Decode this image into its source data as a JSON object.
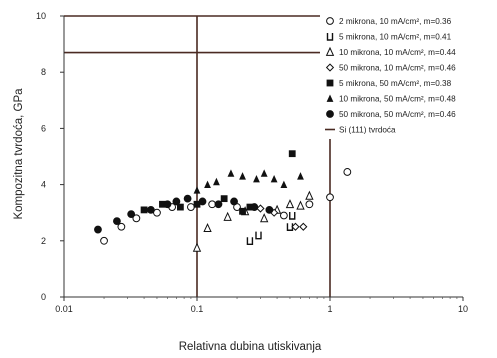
{
  "chart_data": {
    "type": "scatter",
    "x_scale": "log",
    "xlim": [
      0.01,
      10
    ],
    "ylim": [
      0,
      10
    ],
    "x_ticks": [
      {
        "value": 0.01,
        "label": "0.01"
      },
      {
        "value": 0.1,
        "label": "0.1"
      },
      {
        "value": 1,
        "label": "1"
      },
      {
        "value": 10,
        "label": "10"
      }
    ],
    "y_ticks": [
      {
        "value": 0,
        "label": "0"
      },
      {
        "value": 2,
        "label": "2"
      },
      {
        "value": 4,
        "label": "4"
      },
      {
        "value": 6,
        "label": "6"
      },
      {
        "value": 8,
        "label": "8"
      },
      {
        "value": 10,
        "label": "10"
      }
    ],
    "xlabel": "Relativna dubina utiskivanja",
    "ylabel": "Kompozitna tvrdoća, GPa",
    "legend_position": "top-right",
    "reference_lines": [
      {
        "type": "horizontal",
        "y": 10
      },
      {
        "type": "horizontal",
        "y": 8.7
      },
      {
        "type": "vertical",
        "x": 0.1
      },
      {
        "type": "vertical",
        "x": 1
      }
    ],
    "series": [
      {
        "name": "2 mikrona, 10 mA/cm², m=0.36",
        "marker": "circle-open",
        "points": [
          [
            0.02,
            2.0
          ],
          [
            0.027,
            2.5
          ],
          [
            0.035,
            2.8
          ],
          [
            0.05,
            3.0
          ],
          [
            0.065,
            3.2
          ],
          [
            0.09,
            3.2
          ],
          [
            0.13,
            3.3
          ],
          [
            0.2,
            3.2
          ],
          [
            0.45,
            2.9
          ],
          [
            0.7,
            3.3
          ],
          [
            1.0,
            3.55
          ],
          [
            1.35,
            4.45
          ]
        ]
      },
      {
        "name": "5 mikrona, 10 mA/cm², m=0.41",
        "marker": "bracket",
        "points": [
          [
            0.25,
            2.0
          ],
          [
            0.29,
            2.2
          ],
          [
            0.5,
            2.5
          ],
          [
            0.52,
            2.9
          ]
        ]
      },
      {
        "name": "10 mikrona, 10 mA/cm², m=0.44",
        "marker": "triangle-open",
        "points": [
          [
            0.1,
            1.75
          ],
          [
            0.12,
            2.45
          ],
          [
            0.17,
            2.85
          ],
          [
            0.23,
            3.05
          ],
          [
            0.32,
            2.8
          ],
          [
            0.4,
            3.1
          ],
          [
            0.5,
            3.3
          ],
          [
            0.6,
            3.25
          ],
          [
            0.7,
            3.6
          ]
        ]
      },
      {
        "name": "50 mikrona, 10 mA/cm², m=0.46",
        "marker": "diamond-open",
        "points": [
          [
            0.3,
            3.15
          ],
          [
            0.38,
            3.0
          ],
          [
            0.55,
            2.5
          ],
          [
            0.63,
            2.5
          ]
        ]
      },
      {
        "name": "5 mikrona, 50 mA/cm², m=0.38",
        "marker": "square",
        "points": [
          [
            0.04,
            3.1
          ],
          [
            0.055,
            3.3
          ],
          [
            0.075,
            3.2
          ],
          [
            0.1,
            3.3
          ],
          [
            0.16,
            3.5
          ],
          [
            0.22,
            3.05
          ],
          [
            0.25,
            3.2
          ],
          [
            0.52,
            5.1
          ]
        ]
      },
      {
        "name": "10 mikrona, 50 mA/cm², m=0.48",
        "marker": "triangle",
        "points": [
          [
            0.1,
            3.8
          ],
          [
            0.12,
            4.0
          ],
          [
            0.14,
            4.1
          ],
          [
            0.18,
            4.4
          ],
          [
            0.22,
            4.3
          ],
          [
            0.28,
            4.2
          ],
          [
            0.32,
            4.4
          ],
          [
            0.38,
            4.2
          ],
          [
            0.45,
            4.0
          ],
          [
            0.6,
            4.3
          ]
        ]
      },
      {
        "name": "50 mikrona, 50 mA/cm², m=0.46",
        "marker": "circle",
        "points": [
          [
            0.018,
            2.4
          ],
          [
            0.025,
            2.7
          ],
          [
            0.032,
            2.95
          ],
          [
            0.045,
            3.1
          ],
          [
            0.06,
            3.3
          ],
          [
            0.07,
            3.4
          ],
          [
            0.085,
            3.5
          ],
          [
            0.11,
            3.4
          ],
          [
            0.145,
            3.3
          ],
          [
            0.19,
            3.4
          ],
          [
            0.27,
            3.2
          ],
          [
            0.35,
            3.1
          ]
        ]
      },
      {
        "name": "Si (111) tvrdoća",
        "marker": "line"
      }
    ]
  }
}
